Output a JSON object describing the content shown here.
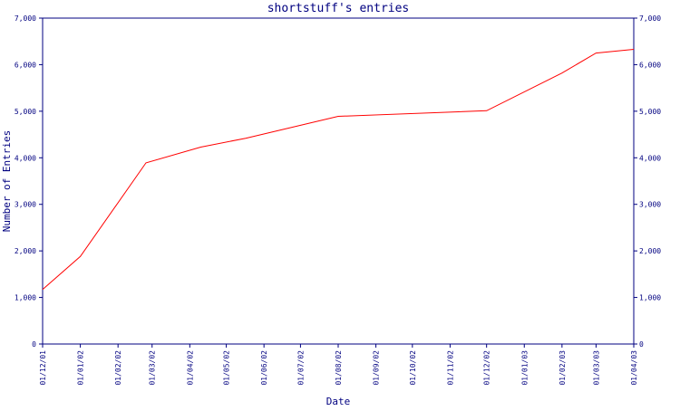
{
  "chart_data": {
    "type": "line",
    "title": "shortstuff's entries",
    "xlabel": "Date",
    "ylabel": "Number of Entries",
    "x": [
      "01/12/01",
      "01/01/02",
      "01/02/02",
      "01/03/02",
      "01/04/02",
      "01/05/02",
      "01/06/02",
      "01/07/02",
      "01/08/02",
      "01/09/02",
      "01/10/02",
      "01/11/02",
      "01/12/02",
      "01/01/03",
      "01/02/03",
      "01/03/03",
      "01/04/03"
    ],
    "x_tick_labels": [
      "01/12/01",
      "01/01/02",
      "01/02/02",
      "01/03/02",
      "01/04/02",
      "01/05/02",
      "01/06/02",
      "01/07/02",
      "01/08/02",
      "01/09/02",
      "01/10/02",
      "01/11/02",
      "01/12/02",
      "01/01/03",
      "01/02/03",
      "01/03/03",
      "01/04/03"
    ],
    "y_tick_labels": [
      "0",
      "1,000",
      "2,000",
      "3,000",
      "4,000",
      "5,000",
      "6,000",
      "7,000"
    ],
    "ylim": [
      0,
      7000
    ],
    "grid": false,
    "legend": "none",
    "series": [
      {
        "points": [
          {
            "x": "2001-12-01",
            "y": 1170
          },
          {
            "x": "2002-01-01",
            "y": 1880
          },
          {
            "x": "2002-02-24",
            "y": 3890
          },
          {
            "x": "2002-04-10",
            "y": 4230
          },
          {
            "x": "2002-05-17",
            "y": 4420
          },
          {
            "x": "2002-08-01",
            "y": 4890
          },
          {
            "x": "2002-12-01",
            "y": 5010
          },
          {
            "x": "2003-02-01",
            "y": 5820
          },
          {
            "x": "2003-03-01",
            "y": 6250
          },
          {
            "x": "2003-04-01",
            "y": 6330
          }
        ],
        "color": "#ff0000"
      }
    ],
    "colors": {
      "axis": "#000080",
      "text": "#000080",
      "series": "#ff0000",
      "background": "#ffffff"
    }
  }
}
